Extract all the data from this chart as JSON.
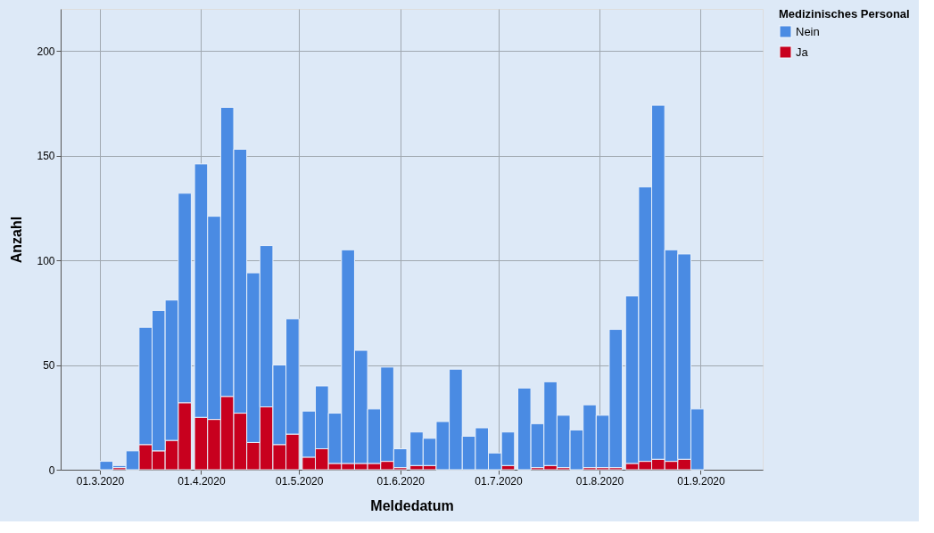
{
  "chart_data": {
    "type": "bar",
    "xlabel": "Meldedatum",
    "ylabel": "Anzahl",
    "legend_title": "Medizinisches Personal",
    "x": [
      "2020-03-03",
      "2020-03-07",
      "2020-03-11",
      "2020-03-15",
      "2020-03-19",
      "2020-03-23",
      "2020-03-27",
      "2020-04-01",
      "2020-04-05",
      "2020-04-09",
      "2020-04-13",
      "2020-04-17",
      "2020-04-21",
      "2020-04-25",
      "2020-04-29",
      "2020-05-04",
      "2020-05-08",
      "2020-05-12",
      "2020-05-16",
      "2020-05-20",
      "2020-05-24",
      "2020-05-28",
      "2020-06-01",
      "2020-06-06",
      "2020-06-10",
      "2020-06-14",
      "2020-06-18",
      "2020-06-22",
      "2020-06-26",
      "2020-06-30",
      "2020-07-04",
      "2020-07-09",
      "2020-07-13",
      "2020-07-17",
      "2020-07-21",
      "2020-07-25",
      "2020-07-29",
      "2020-08-02",
      "2020-08-06",
      "2020-08-11",
      "2020-08-15",
      "2020-08-19",
      "2020-08-23",
      "2020-08-27",
      "2020-08-31"
    ],
    "stacked": true,
    "series": [
      {
        "name": "Ja",
        "color": "#c8001e",
        "values": [
          0,
          1,
          0,
          12,
          9,
          14,
          32,
          25,
          24,
          35,
          27,
          13,
          30,
          12,
          17,
          6,
          10,
          3,
          3,
          3,
          3,
          4,
          1,
          2,
          2,
          0,
          0,
          0,
          0,
          0,
          2,
          0,
          1,
          2,
          1,
          0,
          1,
          1,
          1,
          3,
          4,
          5,
          4,
          5,
          0
        ]
      },
      {
        "name": "Nein",
        "color": "#4a8be3",
        "values": [
          4,
          1,
          9,
          56,
          67,
          67,
          100,
          121,
          97,
          138,
          126,
          81,
          77,
          38,
          55,
          22,
          30,
          24,
          102,
          54,
          26,
          45,
          9,
          16,
          13,
          23,
          48,
          16,
          20,
          8,
          16,
          39,
          21,
          40,
          25,
          19,
          30,
          25,
          66,
          80,
          131,
          169,
          101,
          98,
          29
        ]
      }
    ],
    "xlim": [
      "2020-02-18",
      "2020-09-20"
    ],
    "xticks": [
      {
        "value": "2020-03-01",
        "label": "01.3.2020"
      },
      {
        "value": "2020-04-01",
        "label": "01.4.2020"
      },
      {
        "value": "2020-05-01",
        "label": "01.5.2020"
      },
      {
        "value": "2020-06-01",
        "label": "01.6.2020"
      },
      {
        "value": "2020-07-01",
        "label": "01.7.2020"
      },
      {
        "value": "2020-08-01",
        "label": "01.8.2020"
      },
      {
        "value": "2020-09-01",
        "label": "01.9.2020"
      }
    ],
    "ylim": [
      0,
      220
    ],
    "yticks": [
      0,
      50,
      100,
      150,
      200
    ],
    "grid": true,
    "legend": "top right"
  }
}
